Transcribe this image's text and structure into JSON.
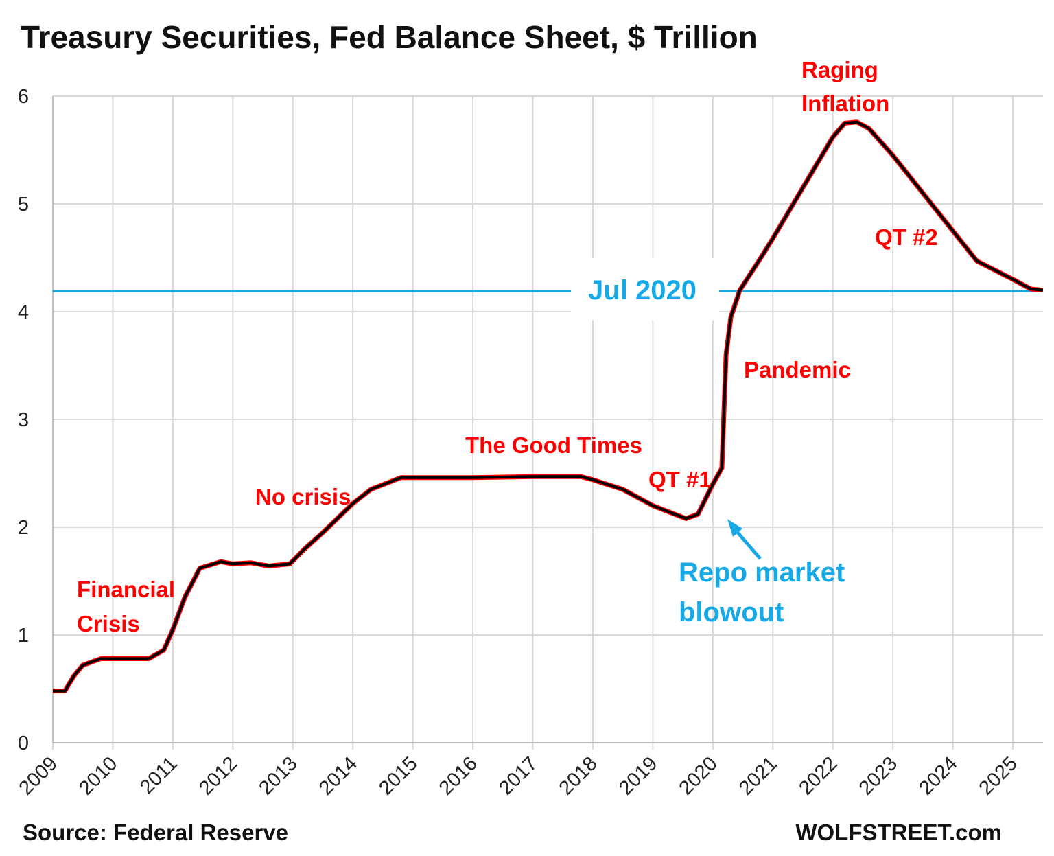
{
  "chart_data": {
    "type": "line",
    "title": "Treasury Securities, Fed Balance Sheet, $ Trillion",
    "xlabel": "",
    "ylabel": "",
    "xlim": [
      2009,
      2025.5
    ],
    "ylim": [
      0,
      6
    ],
    "grid": true,
    "x_ticks": [
      "2009",
      "2010",
      "2011",
      "2012",
      "2013",
      "2014",
      "2015",
      "2016",
      "2017",
      "2018",
      "2019",
      "2020",
      "2021",
      "2022",
      "2023",
      "2024",
      "2025"
    ],
    "y_ticks": [
      "0",
      "1",
      "2",
      "3",
      "4",
      "5",
      "6"
    ],
    "series": [
      {
        "color": "#000000",
        "outline_color": "#ff0000",
        "x": [
          2009.0,
          2009.2,
          2009.35,
          2009.5,
          2009.8,
          2010.6,
          2010.85,
          2011.0,
          2011.2,
          2011.45,
          2011.8,
          2012.0,
          2012.3,
          2012.6,
          2012.95,
          2013.2,
          2013.5,
          2014.0,
          2014.3,
          2014.8,
          2016.0,
          2017.0,
          2017.8,
          2018.0,
          2018.5,
          2019.0,
          2019.55,
          2019.75,
          2020.0,
          2020.15,
          2020.18,
          2020.22,
          2020.3,
          2020.45,
          2020.8,
          2021.0,
          2021.5,
          2022.0,
          2022.2,
          2022.4,
          2022.6,
          2023.0,
          2023.5,
          2024.0,
          2024.4,
          2025.0,
          2025.3,
          2025.5
        ],
        "y": [
          0.48,
          0.48,
          0.62,
          0.72,
          0.78,
          0.78,
          0.86,
          1.05,
          1.35,
          1.62,
          1.68,
          1.66,
          1.67,
          1.64,
          1.66,
          1.8,
          1.95,
          2.22,
          2.35,
          2.46,
          2.46,
          2.47,
          2.47,
          2.44,
          2.35,
          2.2,
          2.08,
          2.12,
          2.4,
          2.55,
          3.0,
          3.6,
          3.95,
          4.2,
          4.5,
          4.68,
          5.15,
          5.62,
          5.75,
          5.76,
          5.7,
          5.45,
          5.1,
          4.75,
          4.47,
          4.3,
          4.21,
          4.2
        ]
      }
    ],
    "reference_line": {
      "y": 4.19,
      "label": "Jul 2020",
      "color": "#17a9e6"
    },
    "annotations": [
      {
        "text": "Financial",
        "color": "#ff0000"
      },
      {
        "text": "Crisis",
        "color": "#ff0000"
      },
      {
        "text": "No crisis",
        "color": "#ff0000"
      },
      {
        "text": "The Good Times",
        "color": "#ff0000"
      },
      {
        "text": "QT #1",
        "color": "#ff0000"
      },
      {
        "text": "Pandemic",
        "color": "#ff0000"
      },
      {
        "text": "Raging",
        "color": "#ff0000"
      },
      {
        "text": "Inflation",
        "color": "#ff0000"
      },
      {
        "text": "QT #2",
        "color": "#ff0000"
      },
      {
        "text": "Repo market",
        "color": "#17a9e6"
      },
      {
        "text": "blowout",
        "color": "#17a9e6"
      }
    ],
    "source": "Source: Federal Reserve",
    "credit": "WOLFSTREET.com"
  }
}
